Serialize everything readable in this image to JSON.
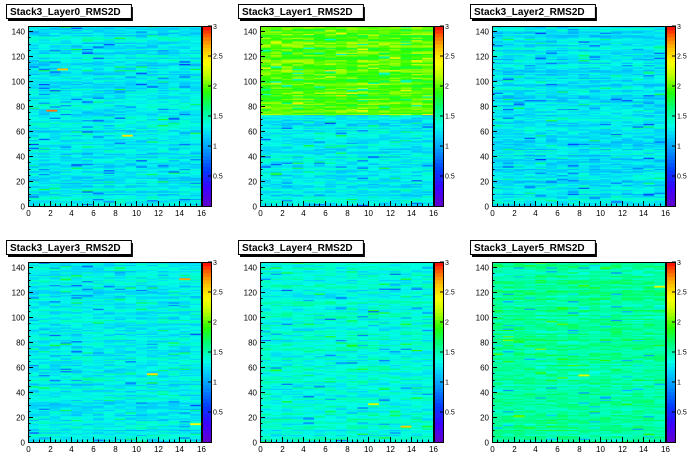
{
  "chart_data": [
    {
      "type": "heatmap",
      "title": "Stack3_Layer0_RMS2D",
      "xlim": [
        0,
        16
      ],
      "ylim": [
        0,
        144
      ],
      "xticks": [
        0,
        2,
        4,
        6,
        8,
        10,
        12,
        14,
        16
      ],
      "yticks": [
        0,
        20,
        40,
        60,
        80,
        100,
        120,
        140
      ],
      "zlim": [
        0,
        3
      ],
      "zticks": [
        {
          "v": 0.5,
          "label": "0.5"
        },
        {
          "v": 1,
          "label": "1"
        },
        {
          "v": 1.5,
          "label": "1.5"
        },
        {
          "v": 2,
          "label": "2"
        },
        {
          "v": 2.5,
          "label": "2.5"
        },
        {
          "v": 3,
          "label": "3"
        }
      ],
      "bands": [
        {
          "y0": 0,
          "y1": 144,
          "level": 1.28
        }
      ],
      "hot_cells": [
        {
          "x": 2.2,
          "y": 76.5,
          "z": 2.8
        },
        {
          "x": 3.2,
          "y": 109.5,
          "z": 2.6
        },
        {
          "x": 9.2,
          "y": 56.5,
          "z": 2.5
        }
      ]
    },
    {
      "type": "heatmap",
      "title": "Stack3_Layer1_RMS2D",
      "xlim": [
        0,
        16
      ],
      "ylim": [
        0,
        144
      ],
      "xticks": [
        0,
        2,
        4,
        6,
        8,
        10,
        12,
        14,
        16
      ],
      "yticks": [
        0,
        20,
        40,
        60,
        80,
        100,
        120,
        140
      ],
      "zlim": [
        0,
        3
      ],
      "zticks": [
        {
          "v": 0.5,
          "label": "0.5"
        },
        {
          "v": 1,
          "label": "1"
        },
        {
          "v": 1.5,
          "label": "1.5"
        },
        {
          "v": 2,
          "label": "2"
        },
        {
          "v": 2.5,
          "label": "2.5"
        },
        {
          "v": 3,
          "label": "3"
        }
      ],
      "bands": [
        {
          "y0": 0,
          "y1": 73,
          "level": 1.28
        },
        {
          "y0": 73,
          "y1": 144,
          "level": 1.98
        }
      ],
      "hot_cells": [
        {
          "x": 12.5,
          "y": 118.5,
          "z": 2.3
        },
        {
          "x": 9.5,
          "y": 125.5,
          "z": 2.3
        }
      ]
    },
    {
      "type": "heatmap",
      "title": "Stack3_Layer2_RMS2D",
      "xlim": [
        0,
        16
      ],
      "ylim": [
        0,
        144
      ],
      "xticks": [
        0,
        2,
        4,
        6,
        8,
        10,
        12,
        14,
        16
      ],
      "yticks": [
        0,
        20,
        40,
        60,
        80,
        100,
        120,
        140
      ],
      "zlim": [
        0,
        3
      ],
      "zticks": [
        {
          "v": 0.5,
          "label": "0.5"
        },
        {
          "v": 1,
          "label": "1"
        },
        {
          "v": 1.5,
          "label": "1.5"
        },
        {
          "v": 2,
          "label": "2"
        },
        {
          "v": 2.5,
          "label": "2.5"
        },
        {
          "v": 3,
          "label": "3"
        }
      ],
      "bands": [
        {
          "y0": 0,
          "y1": 144,
          "level": 1.25
        }
      ],
      "hot_cells": []
    },
    {
      "type": "heatmap",
      "title": "Stack3_Layer3_RMS2D",
      "xlim": [
        0,
        16
      ],
      "ylim": [
        0,
        144
      ],
      "xticks": [
        0,
        2,
        4,
        6,
        8,
        10,
        12,
        14,
        16
      ],
      "yticks": [
        0,
        20,
        40,
        60,
        80,
        100,
        120,
        140
      ],
      "zlim": [
        0,
        3
      ],
      "zticks": [
        {
          "v": 0.5,
          "label": "0.5"
        },
        {
          "v": 1,
          "label": "1"
        },
        {
          "v": 1.5,
          "label": "1.5"
        },
        {
          "v": 2,
          "label": "2"
        },
        {
          "v": 2.5,
          "label": "2.5"
        },
        {
          "v": 3,
          "label": "3"
        }
      ],
      "bands": [
        {
          "y0": 0,
          "y1": 144,
          "level": 1.3
        }
      ],
      "hot_cells": [
        {
          "x": 14.5,
          "y": 130.5,
          "z": 2.7
        },
        {
          "x": 11.5,
          "y": 54.5,
          "z": 2.5
        },
        {
          "x": 15.5,
          "y": 14.5,
          "z": 2.4
        }
      ]
    },
    {
      "type": "heatmap",
      "title": "Stack3_Layer4_RMS2D",
      "xlim": [
        0,
        16
      ],
      "ylim": [
        0,
        144
      ],
      "xticks": [
        0,
        2,
        4,
        6,
        8,
        10,
        12,
        14,
        16
      ],
      "yticks": [
        0,
        20,
        40,
        60,
        80,
        100,
        120,
        140
      ],
      "zlim": [
        0,
        3
      ],
      "zticks": [
        {
          "v": 0.5,
          "label": "0.5"
        },
        {
          "v": 1,
          "label": "1"
        },
        {
          "v": 1.5,
          "label": "1.5"
        },
        {
          "v": 2,
          "label": "2"
        },
        {
          "v": 2.5,
          "label": "2.5"
        },
        {
          "v": 3,
          "label": "3"
        }
      ],
      "bands": [
        {
          "y0": 0,
          "y1": 144,
          "level": 1.38
        }
      ],
      "hot_cells": [
        {
          "x": 13.5,
          "y": 12.5,
          "z": 2.6
        },
        {
          "x": 10.5,
          "y": 30.5,
          "z": 2.3
        }
      ]
    },
    {
      "type": "heatmap",
      "title": "Stack3_Layer5_RMS2D",
      "xlim": [
        0,
        16
      ],
      "ylim": [
        0,
        144
      ],
      "xticks": [
        0,
        2,
        4,
        6,
        8,
        10,
        12,
        14,
        16
      ],
      "yticks": [
        0,
        20,
        40,
        60,
        80,
        100,
        120,
        140
      ],
      "zlim": [
        0,
        3
      ],
      "zticks": [
        {
          "v": 0.5,
          "label": "0.5"
        },
        {
          "v": 1,
          "label": "1"
        },
        {
          "v": 1.5,
          "label": "1.5"
        },
        {
          "v": 2,
          "label": "2"
        },
        {
          "v": 2.5,
          "label": "2.5"
        },
        {
          "v": 3,
          "label": "3"
        }
      ],
      "bands": [
        {
          "y0": 0,
          "y1": 144,
          "level": 1.55
        }
      ],
      "hot_cells": [
        {
          "x": 15.5,
          "y": 124.5,
          "z": 2.3
        },
        {
          "x": 8.5,
          "y": 53.5,
          "z": 2.3
        }
      ]
    }
  ]
}
